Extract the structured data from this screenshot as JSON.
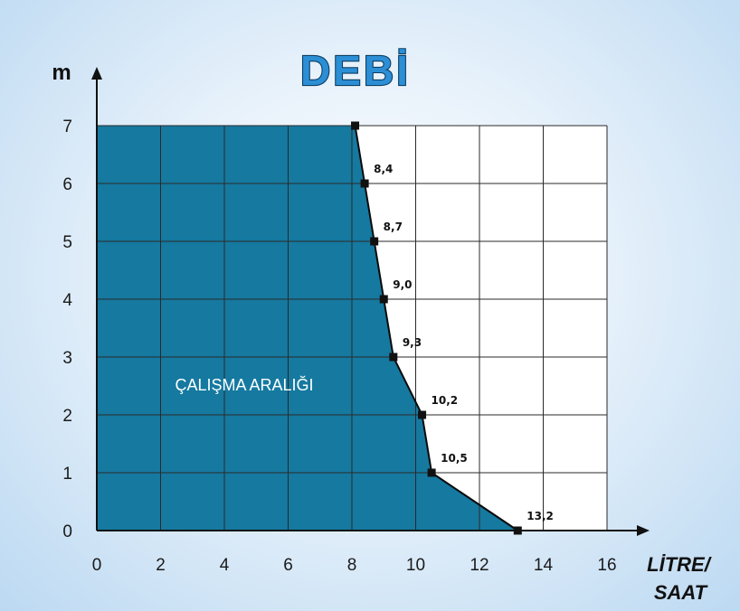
{
  "chart_data": {
    "type": "area",
    "title": "DEBİ",
    "ylabel": "m",
    "xlabel": [
      "LİTRE/",
      "SAAT"
    ],
    "xlim": [
      0,
      16
    ],
    "ylim": [
      0,
      7
    ],
    "x_ticks": [
      "0",
      "2",
      "4",
      "6",
      "8",
      "10",
      "12",
      "14",
      "16"
    ],
    "y_ticks": [
      "0",
      "1",
      "2",
      "3",
      "4",
      "5",
      "6",
      "7"
    ],
    "grid": true,
    "region_label": "ÇALIŞMA ARALIĞI",
    "fill_color": "#1579a0",
    "grid_color": "#2a2a2a",
    "title_color": "#2c8fd6",
    "series": [
      {
        "points": [
          {
            "x": 8.1,
            "y": 7,
            "label": ""
          },
          {
            "x": 8.4,
            "y": 6,
            "label": "8,4"
          },
          {
            "x": 8.7,
            "y": 5,
            "label": "8,7"
          },
          {
            "x": 9.0,
            "y": 4,
            "label": "9,0"
          },
          {
            "x": 9.3,
            "y": 3,
            "label": "9,3"
          },
          {
            "x": 10.2,
            "y": 2,
            "label": "10,2"
          },
          {
            "x": 10.5,
            "y": 1,
            "label": "10,5"
          },
          {
            "x": 13.2,
            "y": 0,
            "label": "13,2"
          }
        ]
      }
    ]
  }
}
